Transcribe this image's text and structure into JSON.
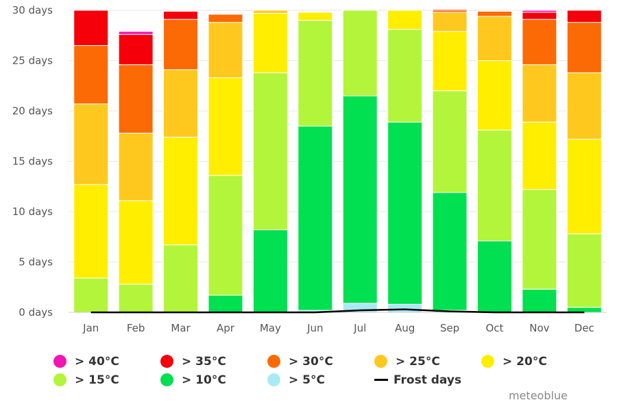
{
  "chart_data": {
    "type": "bar",
    "stacked": true,
    "categories": [
      "Jan",
      "Feb",
      "Mar",
      "Apr",
      "May",
      "Jun",
      "Jul",
      "Aug",
      "Sep",
      "Oct",
      "Nov",
      "Dec"
    ],
    "y_ticks": [
      "0 days",
      "5 days",
      "10 days",
      "15 days",
      "20 days",
      "25 days",
      "30 days"
    ],
    "ylim": [
      0,
      30
    ],
    "grid": true,
    "legend_position": "bottom",
    "series": [
      {
        "name": "> 5°C",
        "color": "#a9e9f5",
        "values": [
          0,
          0,
          0,
          0,
          0,
          0.2,
          0.9,
          0.8,
          0.2,
          0,
          0,
          0
        ]
      },
      {
        "name": "> 10°C",
        "color": "#00e050",
        "values": [
          0,
          0,
          0,
          1.7,
          8.2,
          18.3,
          20.6,
          18.1,
          11.7,
          7.1,
          2.3,
          0.5
        ]
      },
      {
        "name": "> 15°C",
        "color": "#b3f53a",
        "values": [
          3.4,
          2.8,
          6.7,
          11.9,
          15.6,
          10.5,
          8.5,
          9.2,
          10.1,
          11.0,
          9.9,
          7.3
        ]
      },
      {
        "name": "> 20°C",
        "color": "#ffee00",
        "values": [
          9.3,
          8.3,
          10.7,
          9.7,
          5.9,
          0.8,
          0,
          1.9,
          5.9,
          6.9,
          6.7,
          9.4
        ]
      },
      {
        "name": "> 25°C",
        "color": "#ffc81e",
        "values": [
          8.0,
          6.7,
          6.7,
          5.5,
          0.3,
          0,
          0,
          0,
          1.9,
          4.4,
          5.7,
          6.6
        ]
      },
      {
        "name": "> 30°C",
        "color": "#fb6a05",
        "values": [
          5.8,
          6.8,
          5.0,
          0.8,
          0,
          0,
          0,
          0,
          0.2,
          0.5,
          4.5,
          5.0
        ]
      },
      {
        "name": "> 35°C",
        "color": "#f5000a",
        "values": [
          3.5,
          3.0,
          0.8,
          0,
          0,
          0,
          0,
          0,
          0.1,
          0,
          0.7,
          1.2
        ]
      },
      {
        "name": "> 40°C",
        "color": "#f015b4",
        "values": [
          0,
          0.3,
          0,
          0,
          0,
          0,
          0,
          0,
          0,
          0,
          0.2,
          0
        ]
      }
    ],
    "line_series": [
      {
        "name": "Frost days",
        "color": "#000000",
        "values": [
          0,
          0,
          0,
          0,
          0,
          0,
          0.2,
          0.3,
          0.1,
          0,
          0,
          0
        ]
      }
    ],
    "legend": [
      {
        "label": "> 40°C",
        "color": "#f015b4",
        "marker": "dot"
      },
      {
        "label": "> 35°C",
        "color": "#f5000a",
        "marker": "dot"
      },
      {
        "label": "> 30°C",
        "color": "#fb6a05",
        "marker": "dot"
      },
      {
        "label": "> 25°C",
        "color": "#ffc81e",
        "marker": "dot"
      },
      {
        "label": "> 20°C",
        "color": "#ffee00",
        "marker": "dot"
      },
      {
        "label": "> 15°C",
        "color": "#b3f53a",
        "marker": "dot"
      },
      {
        "label": "> 10°C",
        "color": "#00e050",
        "marker": "dot"
      },
      {
        "label": "> 5°C",
        "color": "#a9e9f5",
        "marker": "dot"
      },
      {
        "label": "Frost days",
        "color": "#000000",
        "marker": "line"
      }
    ]
  },
  "credit": "meteoblue"
}
